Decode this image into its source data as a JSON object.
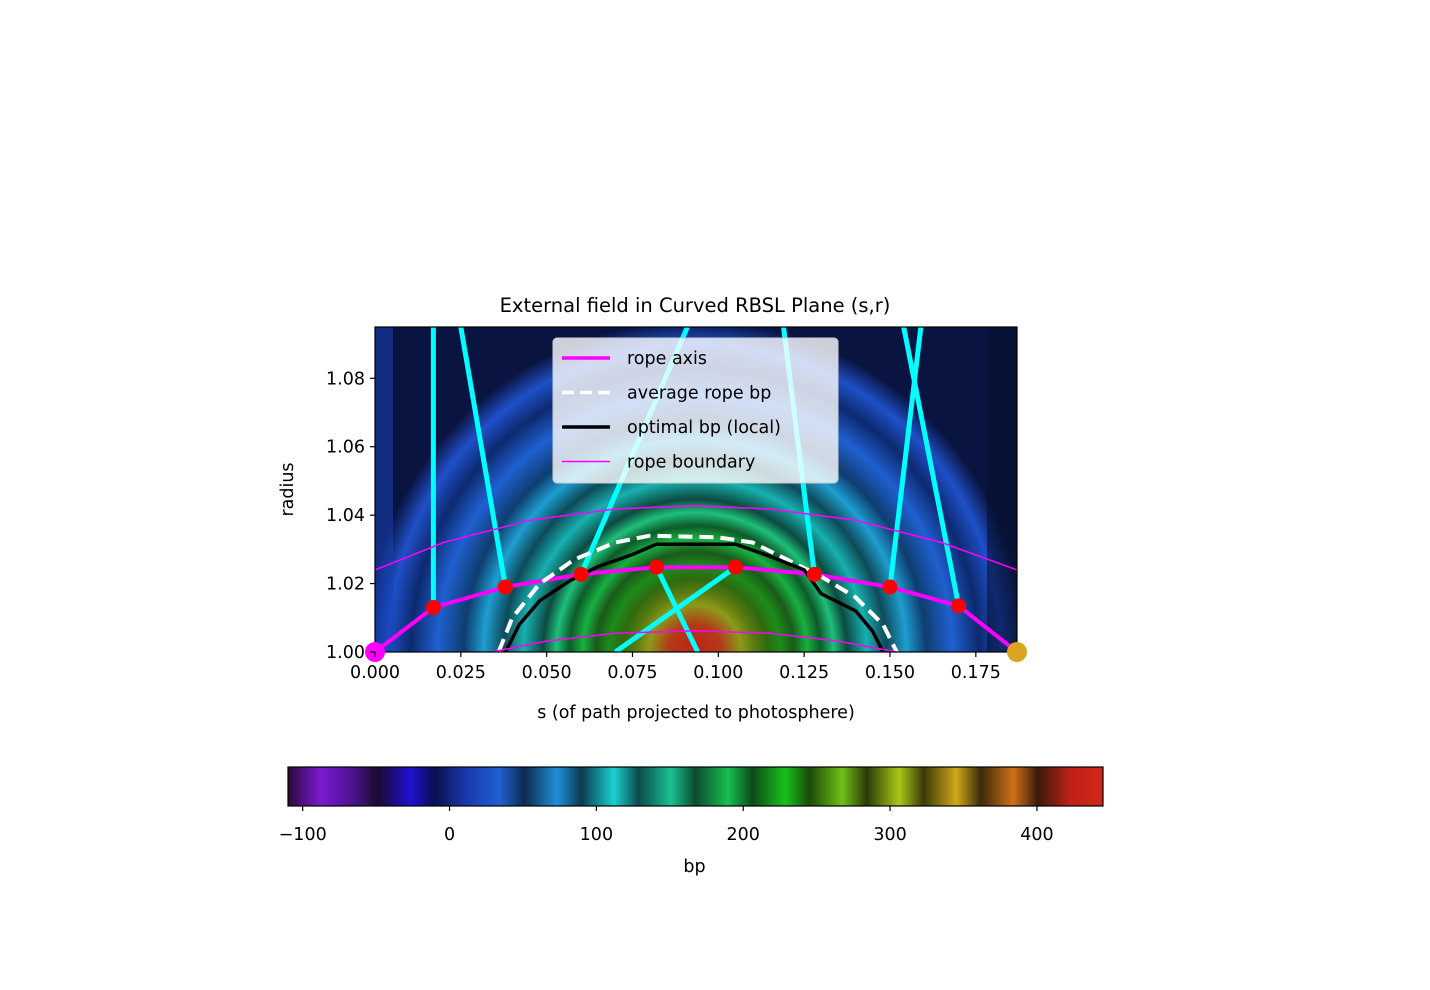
{
  "chart_data": {
    "type": "heatmap",
    "title": "External field in Curved RBSL Plane (s,r)",
    "xlabel": "s (of path projected to photosphere)",
    "ylabel": "radius",
    "xlim": [
      0.0,
      0.187
    ],
    "ylim": [
      1.0,
      1.095
    ],
    "xticks": [
      0.0,
      0.025,
      0.05,
      0.075,
      0.1,
      0.125,
      0.15,
      0.175
    ],
    "xtick_labels": [
      "0.000",
      "0.025",
      "0.050",
      "0.075",
      "0.100",
      "0.125",
      "0.150",
      "0.175"
    ],
    "yticks": [
      1.0,
      1.02,
      1.04,
      1.06,
      1.08
    ],
    "ytick_labels": [
      "1.00",
      "1.02",
      "1.04",
      "1.06",
      "1.08"
    ],
    "colorbar": {
      "label": "bp",
      "range": [
        -110,
        445
      ],
      "ticks": [
        -100,
        0,
        100,
        200,
        300,
        400
      ],
      "tick_labels": [
        "−100",
        "0",
        "100",
        "200",
        "300",
        "400"
      ],
      "colormap": "banded (purple-blue-cyan-green-yellow-orange-red)"
    },
    "legend": {
      "placement": "upper center",
      "entries": [
        {
          "label": "rope axis",
          "color": "#ff00ff",
          "style": "solid-thick"
        },
        {
          "label": "average rope bp",
          "color": "#ffffff",
          "style": "dashed"
        },
        {
          "label": "optimal bp (local)",
          "color": "#000000",
          "style": "solid"
        },
        {
          "label": "rope boundary",
          "color": "#ff00ff",
          "style": "solid-thin"
        }
      ]
    },
    "series": [
      {
        "name": "rope axis",
        "points": [
          [
            0.0,
            1.0
          ],
          [
            0.017,
            1.013
          ],
          [
            0.038,
            1.019
          ],
          [
            0.06,
            1.0227
          ],
          [
            0.082,
            1.0248
          ],
          [
            0.105,
            1.0248
          ],
          [
            0.128,
            1.0227
          ],
          [
            0.15,
            1.019
          ],
          [
            0.17,
            1.0135
          ],
          [
            0.187,
            1.0
          ]
        ]
      },
      {
        "name": "average rope bp",
        "points": [
          [
            0.036,
            1.0
          ],
          [
            0.04,
            1.01
          ],
          [
            0.048,
            1.02
          ],
          [
            0.058,
            1.027
          ],
          [
            0.07,
            1.032
          ],
          [
            0.08,
            1.034
          ],
          [
            0.1,
            1.0335
          ],
          [
            0.11,
            1.032
          ],
          [
            0.12,
            1.027
          ],
          [
            0.13,
            1.022
          ],
          [
            0.14,
            1.016
          ],
          [
            0.148,
            1.008
          ],
          [
            0.152,
            1.0
          ]
        ]
      },
      {
        "name": "optimal bp (local)",
        "points": [
          [
            0.038,
            1.0
          ],
          [
            0.042,
            1.008
          ],
          [
            0.048,
            1.015
          ],
          [
            0.057,
            1.021
          ],
          [
            0.065,
            1.025
          ],
          [
            0.075,
            1.0285
          ],
          [
            0.082,
            1.0315
          ],
          [
            0.09,
            1.0315
          ],
          [
            0.105,
            1.0315
          ],
          [
            0.115,
            1.028
          ],
          [
            0.125,
            1.024
          ],
          [
            0.13,
            1.017
          ],
          [
            0.14,
            1.012
          ],
          [
            0.145,
            1.006
          ],
          [
            0.148,
            1.0
          ]
        ]
      },
      {
        "name": "rope boundary",
        "points": [
          [
            0.0,
            1.024
          ],
          [
            0.02,
            1.032
          ],
          [
            0.045,
            1.0385
          ],
          [
            0.07,
            1.0418
          ],
          [
            0.093,
            1.0428
          ],
          [
            0.115,
            1.0418
          ],
          [
            0.14,
            1.0385
          ],
          [
            0.165,
            1.032
          ],
          [
            0.187,
            1.024
          ]
        ]
      },
      {
        "name": "rope boundary",
        "points": [
          [
            0.034,
            1.0
          ],
          [
            0.05,
            1.0032
          ],
          [
            0.07,
            1.0055
          ],
          [
            0.093,
            1.0062
          ],
          [
            0.115,
            1.0055
          ],
          [
            0.135,
            1.0032
          ],
          [
            0.152,
            1.0
          ]
        ]
      }
    ],
    "axis_points": [
      {
        "s": 0.017,
        "r": 1.013
      },
      {
        "s": 0.038,
        "r": 1.019
      },
      {
        "s": 0.06,
        "r": 1.0227
      },
      {
        "s": 0.082,
        "r": 1.0248
      },
      {
        "s": 0.105,
        "r": 1.0248
      },
      {
        "s": 0.128,
        "r": 1.0227
      },
      {
        "s": 0.15,
        "r": 1.019
      },
      {
        "s": 0.17,
        "r": 1.0135
      }
    ],
    "field_lines": [
      [
        [
          0.017,
          1.013
        ],
        [
          0.017,
          1.095
        ]
      ],
      [
        [
          0.038,
          1.019
        ],
        [
          0.025,
          1.095
        ]
      ],
      [
        [
          0.06,
          1.0227
        ],
        [
          0.091,
          1.095
        ]
      ],
      [
        [
          0.082,
          1.0248
        ],
        [
          0.094,
          1.0
        ]
      ],
      [
        [
          0.105,
          1.0248
        ],
        [
          0.07,
          1.0
        ]
      ],
      [
        [
          0.128,
          1.0227
        ],
        [
          0.119,
          1.095
        ]
      ],
      [
        [
          0.15,
          1.019
        ],
        [
          0.159,
          1.095
        ]
      ],
      [
        [
          0.17,
          1.0135
        ],
        [
          0.154,
          1.095
        ]
      ]
    ],
    "footpoints": [
      {
        "s": 0.0,
        "r": 1.0,
        "color": "#ff00ff"
      },
      {
        "s": 0.187,
        "r": 1.0,
        "color": "#daa520"
      }
    ],
    "colors": {
      "rope_axis": "#ff00ff",
      "axis_points": "#ff0000",
      "field_lines": "#00ffff",
      "footpoint_start": "#ff00ff",
      "footpoint_end": "#daa520"
    }
  }
}
